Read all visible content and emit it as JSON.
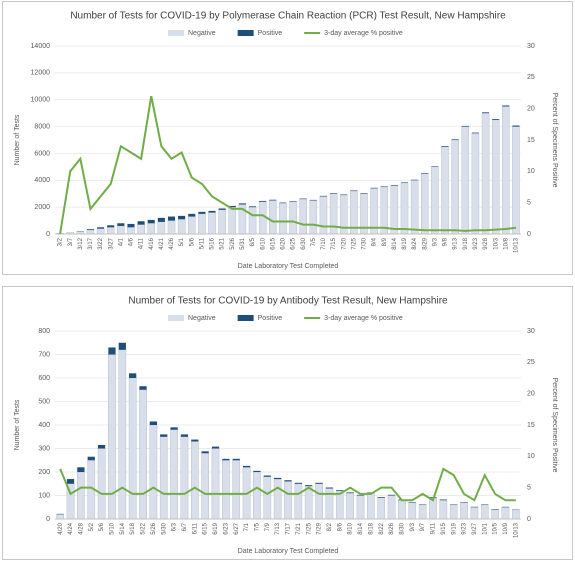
{
  "chart_data": [
    {
      "type": "bar",
      "title": "Number of Tests for COVID-19 by Polymerase Chain Reaction (PCR) Test Result, New Hampshire",
      "x_label": "Date Laboratory Test Completed",
      "y_label": "Number of Tests",
      "y2_label": "Percent of Specimens Positive",
      "categories": [
        "3/2",
        "3/7",
        "3/12",
        "3/17",
        "3/22",
        "3/27",
        "4/1",
        "4/6",
        "4/11",
        "4/16",
        "4/21",
        "4/26",
        "5/1",
        "5/6",
        "5/11",
        "5/16",
        "5/21",
        "5/26",
        "5/31",
        "6/5",
        "6/10",
        "6/15",
        "6/20",
        "6/25",
        "6/30",
        "7/5",
        "7/10",
        "7/15",
        "7/20",
        "7/25",
        "7/30",
        "8/4",
        "8/9",
        "8/14",
        "8/19",
        "8/24",
        "8/29",
        "9/3",
        "9/8",
        "9/13",
        "9/18",
        "9/23",
        "9/28",
        "10/3",
        "10/8",
        "10/13"
      ],
      "series": [
        {
          "name": "Negative",
          "color": "#d9dfea",
          "values": [
            50,
            100,
            200,
            300,
            400,
            500,
            600,
            500,
            700,
            800,
            900,
            1000,
            1100,
            1300,
            1500,
            1600,
            1800,
            2000,
            2200,
            2000,
            2400,
            2500,
            2300,
            2400,
            2600,
            2500,
            2800,
            3000,
            2900,
            3200,
            3000,
            3400,
            3500,
            3600,
            3800,
            4000,
            4500,
            5000,
            6500,
            7000,
            8000,
            7500,
            9000,
            8500,
            9500,
            8000
          ]
        },
        {
          "name": "Positive",
          "color": "#1f4e79",
          "values": [
            0,
            5,
            20,
            60,
            100,
            150,
            200,
            250,
            250,
            250,
            300,
            300,
            250,
            200,
            150,
            120,
            100,
            90,
            80,
            60,
            60,
            50,
            40,
            40,
            40,
            40,
            40,
            40,
            40,
            40,
            40,
            40,
            40,
            40,
            40,
            40,
            40,
            40,
            50,
            50,
            50,
            50,
            60,
            60,
            70,
            80
          ]
        },
        {
          "name": "3-day average % positive",
          "color": "#70ad47",
          "axis": "y2",
          "values": [
            0,
            10,
            12,
            4,
            6,
            8,
            14,
            13,
            12,
            22,
            14,
            12,
            13,
            9,
            8,
            6,
            5,
            4,
            4,
            3,
            3,
            2,
            2,
            2,
            1.5,
            1.5,
            1.2,
            1.2,
            1,
            1,
            1,
            1,
            1,
            0.8,
            0.8,
            0.7,
            0.6,
            0.6,
            0.6,
            0.6,
            0.5,
            0.6,
            0.6,
            0.7,
            0.8,
            1
          ]
        }
      ],
      "ylim": [
        0,
        14000
      ],
      "yticks": [
        0,
        2000,
        4000,
        6000,
        8000,
        10000,
        12000,
        14000
      ],
      "y2lim": [
        0,
        30
      ],
      "y2ticks": [
        0,
        5,
        10,
        15,
        20,
        25,
        30
      ]
    },
    {
      "type": "bar",
      "title": "Number of Tests for COVID-19 by Antibody Test Result, New Hampshire",
      "x_label": "Date Laboratory Test Completed",
      "y_label": "Number of Tests",
      "y2_label": "Percent of Specimens Positive",
      "categories": [
        "4/20",
        "4/24",
        "4/28",
        "5/2",
        "5/6",
        "5/10",
        "5/14",
        "5/18",
        "5/22",
        "5/26",
        "5/30",
        "6/3",
        "6/7",
        "6/11",
        "6/15",
        "6/19",
        "6/23",
        "6/27",
        "7/1",
        "7/5",
        "7/9",
        "7/13",
        "7/17",
        "7/21",
        "7/25",
        "7/29",
        "8/2",
        "8/6",
        "8/10",
        "8/14",
        "8/18",
        "8/22",
        "8/26",
        "8/30",
        "9/3",
        "9/7",
        "9/11",
        "9/15",
        "9/19",
        "9/23",
        "9/27",
        "10/1",
        "10/5",
        "10/9",
        "10/13"
      ],
      "series": [
        {
          "name": "Negative",
          "color": "#d9dfea",
          "values": [
            20,
            150,
            200,
            250,
            300,
            700,
            720,
            600,
            550,
            400,
            350,
            380,
            350,
            330,
            280,
            300,
            250,
            250,
            220,
            200,
            180,
            170,
            160,
            150,
            140,
            150,
            130,
            120,
            110,
            100,
            110,
            90,
            100,
            80,
            70,
            60,
            90,
            80,
            60,
            70,
            50,
            60,
            40,
            50,
            40
          ]
        },
        {
          "name": "Positive",
          "color": "#1f4e79",
          "values": [
            2,
            20,
            20,
            15,
            15,
            30,
            30,
            20,
            15,
            15,
            10,
            10,
            10,
            8,
            8,
            8,
            6,
            6,
            6,
            5,
            5,
            5,
            5,
            4,
            4,
            4,
            4,
            3,
            3,
            3,
            3,
            3,
            3,
            3,
            2,
            2,
            3,
            3,
            2,
            2,
            2,
            2,
            2,
            2,
            1
          ]
        },
        {
          "name": "3-day average % positive",
          "color": "#70ad47",
          "axis": "y2",
          "values": [
            8,
            4,
            5,
            5,
            4,
            4,
            5,
            4,
            4,
            5,
            4,
            4,
            4,
            5,
            4,
            4,
            4,
            4,
            4,
            5,
            4,
            5,
            4,
            4,
            5,
            4,
            4,
            4,
            5,
            4,
            4,
            5,
            5,
            3,
            3,
            4,
            3,
            8,
            7,
            4,
            3,
            7,
            4,
            3,
            3
          ]
        }
      ],
      "ylim": [
        0,
        800
      ],
      "yticks": [
        0,
        100,
        200,
        300,
        400,
        500,
        600,
        700,
        800
      ],
      "y2lim": [
        0,
        30
      ],
      "y2ticks": [
        0,
        5,
        10,
        15,
        20,
        25,
        30
      ]
    }
  ]
}
